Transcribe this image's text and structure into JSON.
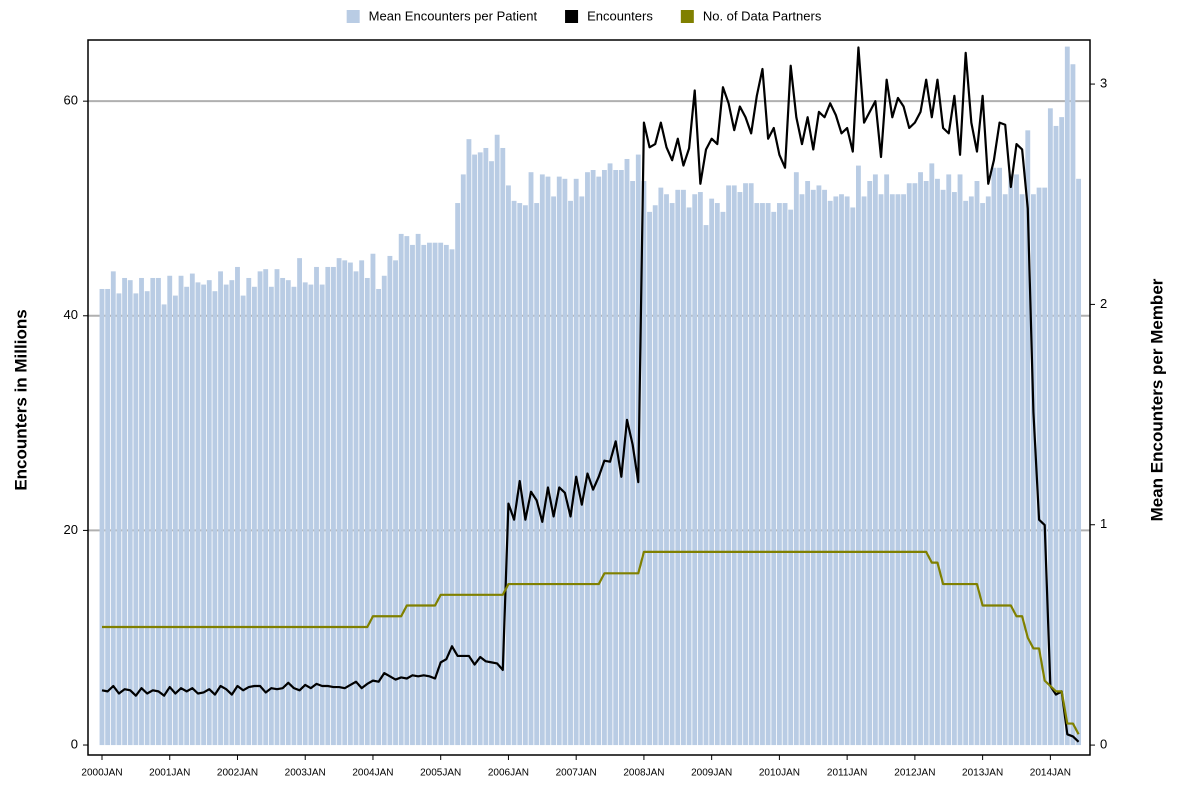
{
  "chart_data": {
    "type": "bar",
    "y_label": "Encounters in Millions",
    "y2_label": "Mean Encounters per Member",
    "legend": "top",
    "grid": true,
    "ylim": [
      -0.93,
      65.7
    ],
    "yticks": [
      0,
      20,
      40,
      60
    ],
    "y2lim": [
      -0.045,
      3.2
    ],
    "y2ticks": [
      0,
      1,
      2,
      3
    ],
    "categories": [
      "2000JAN",
      null,
      null,
      null,
      null,
      null,
      null,
      null,
      null,
      null,
      null,
      null,
      "2001JAN",
      null,
      null,
      null,
      null,
      null,
      null,
      null,
      null,
      null,
      null,
      null,
      "2002JAN",
      null,
      null,
      null,
      null,
      null,
      null,
      null,
      null,
      null,
      null,
      null,
      "2003JAN",
      null,
      null,
      null,
      null,
      null,
      null,
      null,
      null,
      null,
      null,
      null,
      "2004JAN",
      null,
      null,
      null,
      null,
      null,
      null,
      null,
      null,
      null,
      null,
      null,
      "2005JAN",
      null,
      null,
      null,
      null,
      null,
      null,
      null,
      null,
      null,
      null,
      null,
      "2006JAN",
      null,
      null,
      null,
      null,
      null,
      null,
      null,
      null,
      null,
      null,
      null,
      "2007JAN",
      null,
      null,
      null,
      null,
      null,
      null,
      null,
      null,
      null,
      null,
      null,
      "2008JAN",
      null,
      null,
      null,
      null,
      null,
      null,
      null,
      null,
      null,
      null,
      null,
      "2009JAN",
      null,
      null,
      null,
      null,
      null,
      null,
      null,
      null,
      null,
      null,
      null,
      "2010JAN",
      null,
      null,
      null,
      null,
      null,
      null,
      null,
      null,
      null,
      null,
      null,
      "2011JAN",
      null,
      null,
      null,
      null,
      null,
      null,
      null,
      null,
      null,
      null,
      null,
      "2012JAN",
      null,
      null,
      null,
      null,
      null,
      null,
      null,
      null,
      null,
      null,
      null,
      "2013JAN",
      null,
      null,
      null,
      null,
      null,
      null,
      null,
      null,
      null,
      null,
      null,
      "2014JAN",
      null,
      null,
      null,
      null,
      null
    ],
    "series": [
      {
        "name": "Mean Encounters per Patient",
        "type": "bar",
        "axis": "y2",
        "color": "#b9cce4",
        "values": [
          2.07,
          2.07,
          2.15,
          2.05,
          2.12,
          2.11,
          2.05,
          2.12,
          2.06,
          2.12,
          2.12,
          2.0,
          2.13,
          2.04,
          2.13,
          2.08,
          2.14,
          2.1,
          2.09,
          2.11,
          2.06,
          2.15,
          2.09,
          2.11,
          2.17,
          2.04,
          2.12,
          2.08,
          2.15,
          2.16,
          2.08,
          2.16,
          2.12,
          2.11,
          2.08,
          2.21,
          2.1,
          2.09,
          2.17,
          2.09,
          2.17,
          2.17,
          2.21,
          2.2,
          2.19,
          2.15,
          2.2,
          2.12,
          2.23,
          2.07,
          2.13,
          2.22,
          2.2,
          2.32,
          2.31,
          2.27,
          2.32,
          2.27,
          2.28,
          2.28,
          2.28,
          2.27,
          2.25,
          2.46,
          2.59,
          2.75,
          2.68,
          2.69,
          2.71,
          2.65,
          2.77,
          2.71,
          2.54,
          2.47,
          2.46,
          2.45,
          2.6,
          2.46,
          2.59,
          2.58,
          2.49,
          2.58,
          2.57,
          2.47,
          2.57,
          2.49,
          2.6,
          2.61,
          2.58,
          2.61,
          2.64,
          2.61,
          2.61,
          2.66,
          2.56,
          2.68,
          2.56,
          2.42,
          2.45,
          2.53,
          2.5,
          2.46,
          2.52,
          2.52,
          2.44,
          2.5,
          2.51,
          2.36,
          2.48,
          2.46,
          2.42,
          2.54,
          2.54,
          2.51,
          2.55,
          2.55,
          2.46,
          2.46,
          2.46,
          2.42,
          2.46,
          2.46,
          2.43,
          2.6,
          2.5,
          2.56,
          2.52,
          2.54,
          2.52,
          2.47,
          2.49,
          2.5,
          2.49,
          2.44,
          2.63,
          2.49,
          2.56,
          2.59,
          2.5,
          2.59,
          2.5,
          2.5,
          2.5,
          2.55,
          2.55,
          2.6,
          2.56,
          2.64,
          2.57,
          2.52,
          2.59,
          2.51,
          2.59,
          2.47,
          2.49,
          2.56,
          2.46,
          2.49,
          2.62,
          2.62,
          2.5,
          2.59,
          2.59,
          2.5,
          2.79,
          2.5,
          2.53,
          2.53,
          2.89,
          2.81,
          2.85,
          3.17,
          3.09,
          2.57
        ]
      },
      {
        "name": "Encounters",
        "type": "line",
        "color": "#000000",
        "values": [
          5.1,
          5,
          5.5,
          4.8,
          5.2,
          5.1,
          4.6,
          5.3,
          4.8,
          5.1,
          5,
          4.6,
          5.4,
          4.8,
          5.3,
          5,
          5.3,
          4.8,
          4.9,
          5.2,
          4.7,
          5.5,
          5.2,
          4.7,
          5.5,
          5.1,
          5.4,
          5.5,
          5.5,
          4.9,
          5.3,
          5.2,
          5.3,
          5.8,
          5.3,
          5.1,
          5.6,
          5.3,
          5.7,
          5.5,
          5.5,
          5.4,
          5.4,
          5.3,
          5.6,
          5.9,
          5.3,
          5.7,
          6,
          5.9,
          6.7,
          6.4,
          6.1,
          6.3,
          6.2,
          6.5,
          6.4,
          6.5,
          6.4,
          6.2,
          7.7,
          8,
          9.2,
          8.3,
          8.3,
          8.3,
          7.5,
          8.2,
          7.8,
          7.7,
          7.6,
          7,
          22.5,
          21,
          24.6,
          21,
          23.6,
          22.8,
          20.8,
          24,
          21.3,
          24,
          23.5,
          21.3,
          25,
          22.4,
          25.3,
          23.8,
          25,
          26.5,
          26.4,
          28.3,
          25,
          30.3,
          28,
          24.5,
          58,
          55.7,
          56,
          58,
          55.7,
          54.5,
          56.5,
          54,
          55.6,
          61,
          52.3,
          55.5,
          56.5,
          56,
          61.3,
          59.8,
          57.3,
          59.5,
          58.5,
          57,
          60.5,
          63,
          56.5,
          57.5,
          55,
          53.8,
          63.3,
          58.5,
          56,
          58.5,
          55.5,
          59,
          58.5,
          59.8,
          58.7,
          57,
          57.5,
          55.3,
          65,
          58,
          59,
          60,
          54.8,
          62,
          58.5,
          60.3,
          59.5,
          57.5,
          58,
          59,
          62,
          58.5,
          62,
          57.5,
          57,
          60.5,
          55,
          64.5,
          58,
          55.3,
          60.5,
          52.3,
          54.5,
          58,
          57.8,
          52,
          56,
          55.5,
          50,
          31,
          21,
          20.5,
          5.5,
          4.7,
          5,
          1,
          0.8,
          0.3
        ]
      },
      {
        "name": "No. of Data Partners",
        "type": "line",
        "color": "#808000",
        "values": [
          11,
          11,
          11,
          11,
          11,
          11,
          11,
          11,
          11,
          11,
          11,
          11,
          11,
          11,
          11,
          11,
          11,
          11,
          11,
          11,
          11,
          11,
          11,
          11,
          11,
          11,
          11,
          11,
          11,
          11,
          11,
          11,
          11,
          11,
          11,
          11,
          11,
          11,
          11,
          11,
          11,
          11,
          11,
          11,
          11,
          11,
          11,
          11,
          12,
          12,
          12,
          12,
          12,
          12,
          13,
          13,
          13,
          13,
          13,
          13,
          14,
          14,
          14,
          14,
          14,
          14,
          14,
          14,
          14,
          14,
          14,
          14,
          15,
          15,
          15,
          15,
          15,
          15,
          15,
          15,
          15,
          15,
          15,
          15,
          15,
          15,
          15,
          15,
          15,
          16,
          16,
          16,
          16,
          16,
          16,
          16,
          18,
          18,
          18,
          18,
          18,
          18,
          18,
          18,
          18,
          18,
          18,
          18,
          18,
          18,
          18,
          18,
          18,
          18,
          18,
          18,
          18,
          18,
          18,
          18,
          18,
          18,
          18,
          18,
          18,
          18,
          18,
          18,
          18,
          18,
          18,
          18,
          18,
          18,
          18,
          18,
          18,
          18,
          18,
          18,
          18,
          18,
          18,
          18,
          18,
          18,
          18,
          17,
          17,
          15,
          15,
          15,
          15,
          15,
          15,
          15,
          13,
          13,
          13,
          13,
          13,
          13,
          12,
          12,
          10,
          9,
          9,
          6,
          5.5,
          5,
          5,
          2,
          2,
          1
        ]
      }
    ]
  }
}
